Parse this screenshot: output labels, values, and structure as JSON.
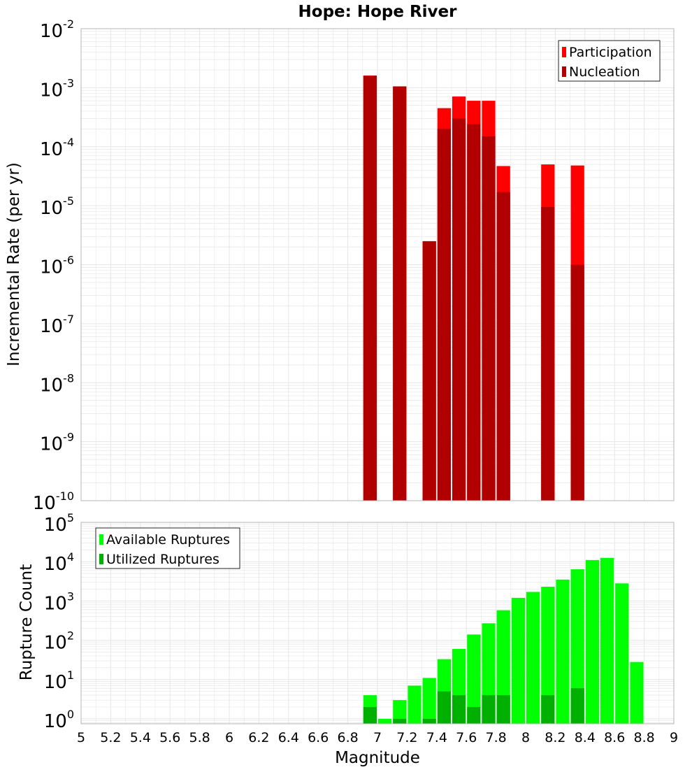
{
  "title": "Hope: Hope River",
  "colors": {
    "participation": "#ff0000",
    "nucleation": "#b00000",
    "available": "#00ff00",
    "utilized": "#00b000",
    "grid": "#e6e6e6",
    "axis": "#b4b4b4"
  },
  "chart_data": [
    {
      "type": "bar",
      "title": "Hope: Hope River",
      "ylabel": "Incremental Rate (per yr)",
      "xlabel": "",
      "xlim": [
        5,
        9
      ],
      "ylim": [
        1e-10,
        0.01
      ],
      "yscale": "log",
      "grid": true,
      "legend_position": "top-right",
      "x": [
        6.95,
        7.15,
        7.35,
        7.45,
        7.55,
        7.65,
        7.75,
        7.85,
        8.15,
        8.35
      ],
      "series": [
        {
          "name": "Participation",
          "values": [
            0.0016,
            0.00105,
            2.5e-06,
            0.00045,
            0.00071,
            0.0006,
            0.0006,
            4.7e-05,
            5e-05,
            4.8e-05
          ]
        },
        {
          "name": "Nucleation",
          "values": [
            0.0016,
            0.00105,
            2.5e-06,
            0.0002,
            0.0003,
            0.00024,
            0.00015,
            1.7e-05,
            9.5e-06,
            1e-06
          ]
        }
      ]
    },
    {
      "type": "bar",
      "title": "",
      "ylabel": "Rupture Count",
      "xlabel": "Magnitude",
      "xlim": [
        5,
        9
      ],
      "ylim": [
        0.75,
        100000.0
      ],
      "yscale": "log",
      "grid": true,
      "legend_position": "top-left",
      "x": [
        6.95,
        7.05,
        7.15,
        7.25,
        7.35,
        7.45,
        7.55,
        7.65,
        7.75,
        7.85,
        7.95,
        8.05,
        8.15,
        8.25,
        8.35,
        8.45,
        8.55,
        8.65,
        8.75
      ],
      "series": [
        {
          "name": "Available Ruptures",
          "values": [
            4,
            1,
            3,
            7,
            11,
            33,
            60,
            140,
            270,
            580,
            1200,
            1700,
            2300,
            3500,
            6400,
            11000,
            12500,
            2800,
            28
          ]
        },
        {
          "name": "Utilized Ruptures",
          "values": [
            2,
            0,
            1,
            0,
            1,
            5,
            4,
            2,
            4,
            4,
            0,
            0,
            4,
            0,
            6,
            0,
            0,
            0,
            0
          ]
        }
      ]
    }
  ],
  "x_ticks": [
    "5",
    "5.2",
    "5.4",
    "5.6",
    "5.8",
    "6",
    "6.2",
    "6.4",
    "6.6",
    "6.8",
    "7",
    "7.2",
    "7.4",
    "7.6",
    "7.8",
    "8",
    "8.2",
    "8.4",
    "8.6",
    "8.8",
    "9"
  ],
  "top_y_ticks": [
    {
      "base": "10",
      "exp": "-10"
    },
    {
      "base": "10",
      "exp": "-9"
    },
    {
      "base": "10",
      "exp": "-8"
    },
    {
      "base": "10",
      "exp": "-7"
    },
    {
      "base": "10",
      "exp": "-6"
    },
    {
      "base": "10",
      "exp": "-5"
    },
    {
      "base": "10",
      "exp": "-4"
    },
    {
      "base": "10",
      "exp": "-3"
    },
    {
      "base": "10",
      "exp": "-2"
    }
  ],
  "bottom_y_ticks": [
    {
      "base": "10",
      "exp": "0"
    },
    {
      "base": "10",
      "exp": "1"
    },
    {
      "base": "10",
      "exp": "2"
    },
    {
      "base": "10",
      "exp": "3"
    },
    {
      "base": "10",
      "exp": "4"
    },
    {
      "base": "10",
      "exp": "5"
    }
  ]
}
